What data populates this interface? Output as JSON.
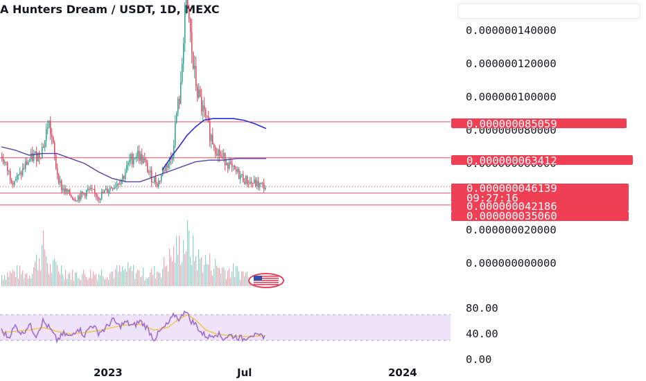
{
  "header": {
    "title": "A Hunters Dream / USDT, 1D, MEXC"
  },
  "colors": {
    "up": "#2e9e8f",
    "down": "#e0435c",
    "ma_fast": "#2b2bd6",
    "ma_slow": "#5a3fa6",
    "level_line": "#e84c5f",
    "price_tag": "#ef3f55",
    "rsi_line": "#9e6cc9",
    "rsi_ma": "#e9c84a",
    "rsi_band": "#efe3fa"
  },
  "chart_data": [
    {
      "type": "candlestick",
      "title": "A Hunters Dream / USDT, 1D, MEXC",
      "y_tick_labels": [
        "0.000000140000",
        "0.000000120000",
        "0.000000100000",
        "0.000000080000",
        "0.000000060000",
        "0.000000020000",
        "0.000000000000"
      ],
      "y_ticks": [
        1.4e-07,
        1.2e-07,
        1e-07,
        8e-08,
        6e-08,
        2e-08,
        0.0
      ],
      "x_tick_labels": [
        "2023",
        "Jul",
        "2024"
      ],
      "horizontal_levels": [
        8.5059e-08,
        6.3412e-08,
        4.2186e-08,
        3.506e-08
      ],
      "price_tags": [
        {
          "label": "0.000000085059",
          "value": 8.5059e-08
        },
        {
          "label": "0.000000063412",
          "value": 6.3412e-08
        },
        {
          "label": "0.000000046139",
          "value": 4.6139e-08
        },
        {
          "label": "09:27:16",
          "value": 4.6139e-08
        },
        {
          "label": "0.000000042186",
          "value": 4.2186e-08
        },
        {
          "label": "0.000000035060",
          "value": 3.506e-08
        }
      ],
      "price_path": [
        [
          0,
          6.4e-08
        ],
        [
          8,
          5.6e-08
        ],
        [
          15,
          5e-08
        ],
        [
          25,
          5.2e-08
        ],
        [
          35,
          6e-08
        ],
        [
          45,
          6.4e-08
        ],
        [
          55,
          6.6e-08
        ],
        [
          62,
          7.4e-08
        ],
        [
          67,
          8.6e-08
        ],
        [
          72,
          7.5e-08
        ],
        [
          78,
          5.8e-08
        ],
        [
          85,
          4.6e-08
        ],
        [
          95,
          4.2e-08
        ],
        [
          105,
          3.9e-08
        ],
        [
          115,
          4.1e-08
        ],
        [
          125,
          4.4e-08
        ],
        [
          140,
          4e-08
        ],
        [
          155,
          4.5e-08
        ],
        [
          165,
          4.8e-08
        ],
        [
          175,
          5.2e-08
        ],
        [
          185,
          6.2e-08
        ],
        [
          195,
          6.6e-08
        ],
        [
          205,
          6.1e-08
        ],
        [
          215,
          5.2e-08
        ],
        [
          225,
          4.8e-08
        ],
        [
          235,
          5.8e-08
        ],
        [
          245,
          6.3e-08
        ],
        [
          252,
          9e-08
        ],
        [
          258,
          1.04e-07
        ],
        [
          264,
          1.55e-07
        ],
        [
          270,
          1.45e-07
        ],
        [
          276,
          1.18e-07
        ],
        [
          282,
          1.03e-07
        ],
        [
          288,
          9.4e-08
        ],
        [
          294,
          8.6e-08
        ],
        [
          300,
          7.8e-08
        ],
        [
          308,
          7e-08
        ],
        [
          316,
          6.4e-08
        ],
        [
          324,
          6.2e-08
        ],
        [
          332,
          5.6e-08
        ],
        [
          340,
          5.4e-08
        ],
        [
          348,
          5.1e-08
        ],
        [
          356,
          4.9e-08
        ],
        [
          364,
          4.8e-08
        ],
        [
          372,
          4.7e-08
        ],
        [
          380,
          4.6e-08
        ]
      ],
      "volume_path": [
        [
          0,
          0.2
        ],
        [
          20,
          0.25
        ],
        [
          40,
          0.22
        ],
        [
          62,
          0.7
        ],
        [
          68,
          0.3
        ],
        [
          80,
          0.35
        ],
        [
          100,
          0.2
        ],
        [
          130,
          0.22
        ],
        [
          160,
          0.25
        ],
        [
          185,
          0.28
        ],
        [
          210,
          0.2
        ],
        [
          230,
          0.3
        ],
        [
          250,
          0.6
        ],
        [
          262,
          0.75
        ],
        [
          268,
          0.8
        ],
        [
          280,
          0.5
        ],
        [
          300,
          0.4
        ],
        [
          320,
          0.3
        ],
        [
          340,
          0.25
        ],
        [
          360,
          0.2
        ],
        [
          380,
          0.15
        ]
      ],
      "ma_fast_path": [
        [
          232,
          5.6e-08
        ],
        [
          245,
          6.4e-08
        ],
        [
          256,
          7e-08
        ],
        [
          268,
          7.7e-08
        ],
        [
          280,
          8.2e-08
        ],
        [
          292,
          8.6e-08
        ],
        [
          305,
          8.7e-08
        ],
        [
          320,
          8.7e-08
        ],
        [
          335,
          8.7e-08
        ],
        [
          350,
          8.6e-08
        ],
        [
          365,
          8.4e-08
        ],
        [
          382,
          8.1e-08
        ]
      ],
      "ma_slow_path": [
        [
          0,
          7e-08
        ],
        [
          20,
          6.8e-08
        ],
        [
          40,
          6.5e-08
        ],
        [
          60,
          6.6e-08
        ],
        [
          80,
          6.6e-08
        ],
        [
          100,
          6.3e-08
        ],
        [
          120,
          6e-08
        ],
        [
          140,
          5.5e-08
        ],
        [
          160,
          5.1e-08
        ],
        [
          180,
          4.9e-08
        ],
        [
          200,
          4.9e-08
        ],
        [
          220,
          5.2e-08
        ],
        [
          240,
          5.5e-08
        ],
        [
          260,
          5.8e-08
        ],
        [
          280,
          6.1e-08
        ],
        [
          300,
          6.2e-08
        ],
        [
          320,
          6.2e-08
        ],
        [
          340,
          6.3e-08
        ],
        [
          360,
          6.3e-08
        ],
        [
          382,
          6.3e-08
        ]
      ]
    },
    {
      "type": "line",
      "y_tick_labels": [
        "80.00",
        "40.00",
        "0.00"
      ],
      "y_ticks": [
        80,
        40,
        0
      ],
      "band": [
        30,
        70
      ],
      "rsi_path": [
        [
          0,
          45
        ],
        [
          10,
          35
        ],
        [
          20,
          52
        ],
        [
          30,
          40
        ],
        [
          40,
          55
        ],
        [
          50,
          38
        ],
        [
          60,
          60
        ],
        [
          70,
          48
        ],
        [
          80,
          30
        ],
        [
          90,
          40
        ],
        [
          100,
          35
        ],
        [
          110,
          50
        ],
        [
          120,
          38
        ],
        [
          130,
          55
        ],
        [
          140,
          42
        ],
        [
          150,
          48
        ],
        [
          160,
          62
        ],
        [
          170,
          52
        ],
        [
          180,
          58
        ],
        [
          190,
          52
        ],
        [
          200,
          60
        ],
        [
          210,
          50
        ],
        [
          220,
          32
        ],
        [
          230,
          45
        ],
        [
          240,
          55
        ],
        [
          250,
          70
        ],
        [
          258,
          62
        ],
        [
          265,
          80
        ],
        [
          272,
          62
        ],
        [
          280,
          55
        ],
        [
          290,
          40
        ],
        [
          300,
          35
        ],
        [
          310,
          42
        ],
        [
          320,
          33
        ],
        [
          330,
          38
        ],
        [
          340,
          35
        ],
        [
          350,
          32
        ],
        [
          360,
          40
        ],
        [
          370,
          35
        ],
        [
          380,
          38
        ]
      ],
      "rsi_ma_path": [
        [
          0,
          42
        ],
        [
          20,
          44
        ],
        [
          40,
          46
        ],
        [
          60,
          50
        ],
        [
          80,
          44
        ],
        [
          100,
          40
        ],
        [
          120,
          42
        ],
        [
          140,
          45
        ],
        [
          160,
          50
        ],
        [
          180,
          54
        ],
        [
          200,
          55
        ],
        [
          220,
          46
        ],
        [
          240,
          50
        ],
        [
          255,
          62
        ],
        [
          268,
          70
        ],
        [
          280,
          62
        ],
        [
          295,
          46
        ],
        [
          310,
          40
        ],
        [
          330,
          37
        ],
        [
          350,
          36
        ],
        [
          380,
          37
        ]
      ]
    }
  ]
}
